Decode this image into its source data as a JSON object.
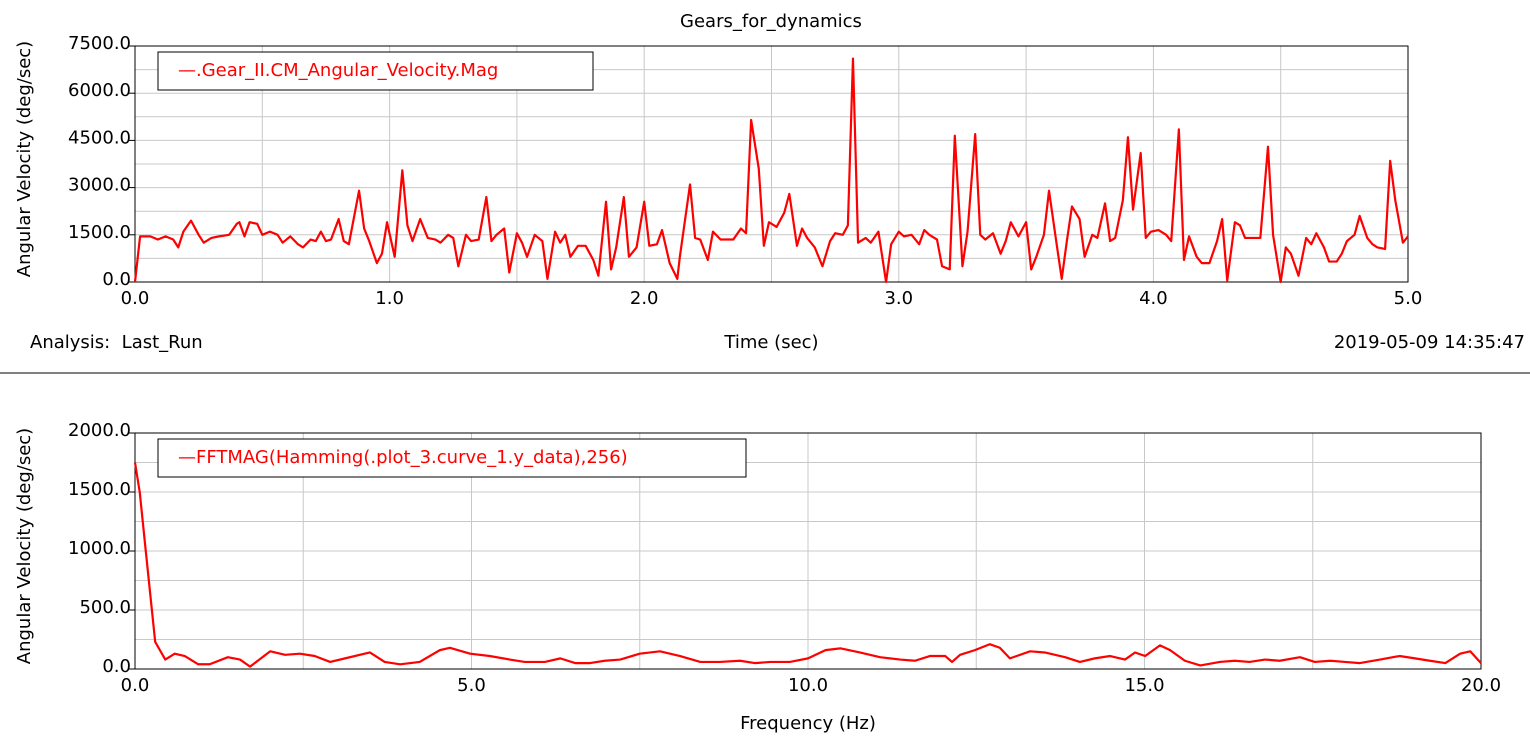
{
  "title": "Gears_for_dynamics",
  "footer": {
    "analysis": "Analysis:  Last_Run",
    "timestamp": "2019-05-09 14:35:47"
  },
  "chart_data": [
    {
      "type": "line",
      "ylabel": "Angular Velocity (deg/sec)",
      "xlabel": "Time (sec)",
      "xlim": [
        0,
        5
      ],
      "ylim": [
        0,
        7500
      ],
      "xticks": [
        {
          "value": 0,
          "label": "0.0"
        },
        {
          "value": 1,
          "label": "1.0"
        },
        {
          "value": 2,
          "label": "2.0"
        },
        {
          "value": 3,
          "label": "3.0"
        },
        {
          "value": 4,
          "label": "4.0"
        },
        {
          "value": 5,
          "label": "5.0"
        }
      ],
      "yticks": [
        {
          "value": 0,
          "label": "0.0"
        },
        {
          "value": 1500,
          "label": "1500.0"
        },
        {
          "value": 3000,
          "label": "3000.0"
        },
        {
          "value": 4500,
          "label": "4500.0"
        },
        {
          "value": 6000,
          "label": "6000.0"
        },
        {
          "value": 7500,
          "label": "7500.0"
        }
      ],
      "xminor": [
        0.5,
        1.5,
        2.5,
        3.5,
        4.5
      ],
      "yminor": [
        750,
        2250,
        3750,
        5250,
        6750
      ],
      "grid": true,
      "legend": "upper left",
      "series": [
        {
          "name": "—.Gear_II.CM_Angular_Velocity.Mag",
          "color": "#ff0000",
          "x": [
            0.0,
            0.02,
            0.06,
            0.09,
            0.12,
            0.15,
            0.17,
            0.19,
            0.22,
            0.25,
            0.27,
            0.3,
            0.33,
            0.37,
            0.4,
            0.41,
            0.43,
            0.45,
            0.48,
            0.5,
            0.53,
            0.56,
            0.58,
            0.61,
            0.64,
            0.66,
            0.69,
            0.71,
            0.73,
            0.75,
            0.77,
            0.8,
            0.82,
            0.84,
            0.88,
            0.9,
            0.92,
            0.95,
            0.97,
            0.99,
            1.02,
            1.05,
            1.07,
            1.09,
            1.12,
            1.15,
            1.18,
            1.2,
            1.23,
            1.25,
            1.27,
            1.3,
            1.32,
            1.35,
            1.38,
            1.4,
            1.42,
            1.45,
            1.47,
            1.5,
            1.52,
            1.54,
            1.57,
            1.6,
            1.62,
            1.65,
            1.67,
            1.69,
            1.71,
            1.74,
            1.77,
            1.8,
            1.82,
            1.85,
            1.87,
            1.89,
            1.92,
            1.94,
            1.97,
            2.0,
            2.02,
            2.05,
            2.07,
            2.1,
            2.13,
            2.14,
            2.18,
            2.2,
            2.22,
            2.25,
            2.27,
            2.3,
            2.33,
            2.35,
            2.38,
            2.4,
            2.42,
            2.45,
            2.47,
            2.49,
            2.52,
            2.55,
            2.57,
            2.6,
            2.62,
            2.64,
            2.67,
            2.7,
            2.73,
            2.75,
            2.78,
            2.8,
            2.82,
            2.84,
            2.87,
            2.89,
            2.92,
            2.95,
            2.97,
            3.0,
            3.02,
            3.05,
            3.08,
            3.1,
            3.12,
            3.15,
            3.17,
            3.2,
            3.22,
            3.25,
            3.27,
            3.3,
            3.32,
            3.34,
            3.37,
            3.4,
            3.42,
            3.44,
            3.47,
            3.5,
            3.52,
            3.54,
            3.57,
            3.59,
            3.62,
            3.64,
            3.66,
            3.68,
            3.71,
            3.73,
            3.76,
            3.78,
            3.81,
            3.83,
            3.85,
            3.88,
            3.9,
            3.92,
            3.95,
            3.97,
            3.99,
            4.02,
            4.05,
            4.07,
            4.1,
            4.12,
            4.14,
            4.17,
            4.19,
            4.22,
            4.25,
            4.27,
            4.29,
            4.32,
            4.34,
            4.36,
            4.39,
            4.42,
            4.45,
            4.47,
            4.5,
            4.52,
            4.54,
            4.57,
            4.6,
            4.62,
            4.64,
            4.67,
            4.69,
            4.72,
            4.74,
            4.76,
            4.79,
            4.81,
            4.84,
            4.86,
            4.88,
            4.91,
            4.93,
            4.95,
            4.98,
            5.0
          ],
          "values": [
            0,
            1450,
            1450,
            1350,
            1450,
            1350,
            1100,
            1600,
            1950,
            1500,
            1250,
            1400,
            1450,
            1500,
            1850,
            1900,
            1450,
            1900,
            1850,
            1500,
            1600,
            1500,
            1250,
            1450,
            1200,
            1100,
            1350,
            1300,
            1600,
            1300,
            1350,
            2000,
            1300,
            1200,
            2900,
            1700,
            1300,
            600,
            900,
            1900,
            800,
            3550,
            1800,
            1300,
            2000,
            1400,
            1350,
            1250,
            1500,
            1400,
            500,
            1500,
            1300,
            1350,
            2700,
            1300,
            1500,
            1700,
            300,
            1550,
            1250,
            800,
            1500,
            1300,
            100,
            1600,
            1250,
            1500,
            800,
            1150,
            1150,
            700,
            200,
            2550,
            400,
            1100,
            2700,
            800,
            1100,
            2550,
            1150,
            1200,
            1650,
            600,
            100,
            800,
            3100,
            1400,
            1350,
            700,
            1600,
            1350,
            1350,
            1350,
            1700,
            1550,
            5150,
            3600,
            1150,
            1900,
            1750,
            2200,
            2800,
            1150,
            1700,
            1400,
            1100,
            500,
            1300,
            1550,
            1500,
            1800,
            7100,
            1250,
            1400,
            1250,
            1600,
            0,
            1200,
            1600,
            1450,
            1500,
            1200,
            1650,
            1500,
            1350,
            500,
            400,
            4650,
            500,
            1600,
            4700,
            1500,
            1350,
            1550,
            900,
            1300,
            1900,
            1450,
            1900,
            400,
            800,
            1500,
            2900,
            1200,
            100,
            1300,
            2400,
            2000,
            800,
            1500,
            1400,
            2500,
            1300,
            1400,
            2600,
            4600,
            2300,
            4100,
            1400,
            1600,
            1650,
            1500,
            1300,
            4850,
            700,
            1450,
            800,
            600,
            600,
            1300,
            2000,
            50,
            1900,
            1800,
            1400,
            1400,
            1400,
            4300,
            1500,
            0,
            1100,
            900,
            200,
            1400,
            1200,
            1550,
            1100,
            650,
            650,
            900,
            1300,
            1500,
            2100,
            1400,
            1200,
            1100,
            1050,
            3850,
            2600,
            1250,
            1450
          ]
        }
      ]
    },
    {
      "type": "line",
      "ylabel": "Angular Velocity (deg/sec)",
      "xlabel": "Frequency (Hz)",
      "xlim": [
        0,
        20
      ],
      "ylim": [
        0,
        2000
      ],
      "xticks": [
        {
          "value": 0,
          "label": "0.0"
        },
        {
          "value": 5,
          "label": "5.0"
        },
        {
          "value": 10,
          "label": "10.0"
        },
        {
          "value": 15,
          "label": "15.0"
        },
        {
          "value": 20,
          "label": "20.0"
        }
      ],
      "yticks": [
        {
          "value": 0,
          "label": "0.0"
        },
        {
          "value": 500,
          "label": "500.0"
        },
        {
          "value": 1000,
          "label": "1000.0"
        },
        {
          "value": 1500,
          "label": "1500.0"
        },
        {
          "value": 2000,
          "label": "2000.0"
        }
      ],
      "xminor": [
        2.5,
        7.5,
        12.5,
        17.5
      ],
      "yminor": [
        250,
        750,
        1250,
        1750
      ],
      "grid": true,
      "legend": "upper left",
      "series": [
        {
          "name": "—FFTMAG(Hamming(.plot_3.curve_1.y_data),256)",
          "color": "#ff0000",
          "x": [
            0.0,
            0.07,
            0.16,
            0.3,
            0.45,
            0.59,
            0.74,
            0.94,
            1.11,
            1.38,
            1.56,
            1.71,
            2.01,
            2.23,
            2.45,
            2.67,
            2.9,
            3.12,
            3.49,
            3.71,
            3.94,
            4.23,
            4.53,
            4.68,
            4.98,
            5.27,
            5.57,
            5.79,
            6.09,
            6.32,
            6.54,
            6.76,
            6.98,
            7.21,
            7.5,
            7.8,
            8.1,
            8.4,
            8.69,
            8.99,
            9.21,
            9.44,
            9.73,
            10.0,
            10.26,
            10.48,
            10.77,
            11.07,
            11.37,
            11.59,
            11.81,
            12.04,
            12.14,
            12.26,
            12.48,
            12.7,
            12.85,
            13.0,
            13.3,
            13.52,
            13.82,
            14.04,
            14.26,
            14.49,
            14.71,
            14.86,
            15.01,
            15.23,
            15.38,
            15.6,
            15.83,
            16.12,
            16.34,
            16.56,
            16.79,
            17.01,
            17.31,
            17.53,
            17.76,
            17.98,
            18.2,
            18.5,
            18.79,
            19.02,
            19.24,
            19.47,
            19.69,
            19.84,
            20.0
          ],
          "values": [
            1750,
            1500,
            1000,
            230,
            80,
            130,
            110,
            40,
            40,
            100,
            80,
            20,
            150,
            120,
            130,
            110,
            60,
            90,
            140,
            60,
            40,
            60,
            160,
            180,
            130,
            110,
            80,
            60,
            60,
            90,
            50,
            50,
            70,
            80,
            130,
            150,
            110,
            60,
            60,
            70,
            50,
            60,
            60,
            90,
            160,
            175,
            140,
            100,
            80,
            70,
            110,
            110,
            60,
            120,
            160,
            210,
            180,
            90,
            150,
            140,
            100,
            60,
            90,
            110,
            80,
            140,
            110,
            200,
            160,
            70,
            30,
            60,
            70,
            60,
            80,
            70,
            100,
            60,
            70,
            60,
            50,
            80,
            110,
            90,
            70,
            50,
            130,
            150,
            50
          ]
        }
      ]
    }
  ]
}
